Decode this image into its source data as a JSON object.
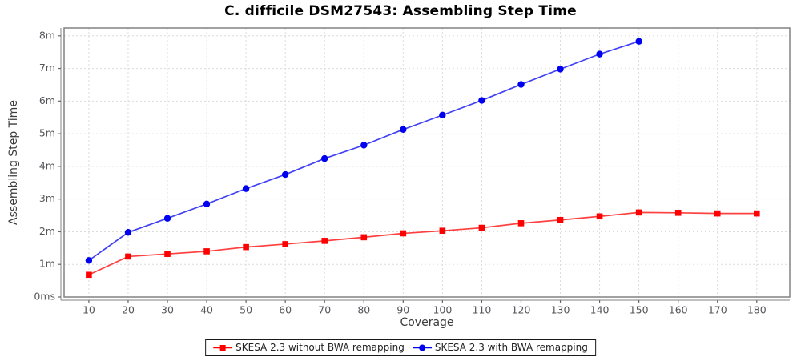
{
  "page": {
    "background": "#ffffff"
  },
  "chart_data": {
    "type": "line",
    "title": "C. difficile DSM27543: Assembling Step Time",
    "xlabel": "Coverage",
    "ylabel": "Assembling Step Time",
    "x_ticks": [
      10,
      20,
      30,
      40,
      50,
      60,
      70,
      80,
      90,
      100,
      110,
      120,
      130,
      140,
      150,
      160,
      170,
      180
    ],
    "y_ticks": [
      0,
      1,
      2,
      3,
      4,
      5,
      6,
      7,
      8
    ],
    "y_tick_labels": [
      "0ms",
      "1m",
      "2m",
      "3m",
      "4m",
      "5m",
      "6m",
      "7m",
      "8m"
    ],
    "y_unit": "minutes",
    "xlim": [
      3.7,
      188.4
    ],
    "ylim": [
      0,
      8.24
    ],
    "grid": true,
    "legend_position": "bottom-center",
    "series": [
      {
        "name": "SKESA 2.3 without BWA remapping",
        "marker": "square",
        "color": "#ff0000",
        "x": [
          10,
          20,
          30,
          40,
          50,
          60,
          70,
          80,
          90,
          100,
          110,
          120,
          130,
          140,
          150,
          160,
          170,
          180
        ],
        "y": [
          0.68,
          1.24,
          1.32,
          1.4,
          1.53,
          1.62,
          1.72,
          1.83,
          1.95,
          2.03,
          2.12,
          2.26,
          2.36,
          2.47,
          2.59,
          2.58,
          2.56,
          2.56
        ]
      },
      {
        "name": "SKESA 2.3 with BWA remapping",
        "marker": "circle",
        "color": "#0000f0",
        "x": [
          10,
          20,
          30,
          40,
          50,
          60,
          70,
          80,
          90,
          100,
          110,
          120,
          130,
          140,
          150
        ],
        "y": [
          1.12,
          1.98,
          2.41,
          2.85,
          3.32,
          3.75,
          4.24,
          4.65,
          5.13,
          5.57,
          6.02,
          6.51,
          6.98,
          7.44,
          7.83
        ]
      }
    ],
    "colors": {
      "grid": "#dcdcdc",
      "plot_border": "#828282",
      "axis_line": "#9a9a9a",
      "tick_mark": "#666666",
      "tick_label": "#55565a",
      "axis_label": "#3c3c3c"
    }
  }
}
